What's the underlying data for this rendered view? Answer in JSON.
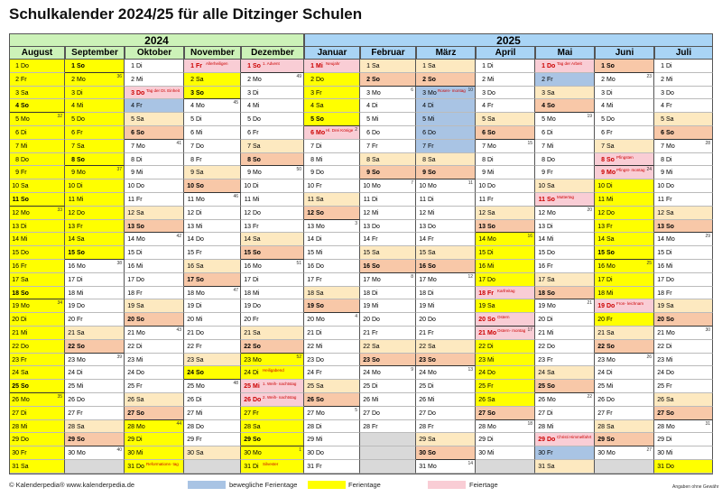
{
  "title": "Schulkalender 2024/25 für alle Ditzinger Schulen",
  "years": [
    "2024",
    "2025"
  ],
  "months": [
    {
      "name": "August",
      "year": 2024,
      "m": 8,
      "holidays": {
        "1": "yellow",
        "2": "yellow",
        "3": "yellow",
        "4": "yellow",
        "5": "yellow",
        "6": "yellow",
        "7": "yellow",
        "8": "yellow",
        "9": "yellow",
        "10": "yellow",
        "11": "yellow",
        "12": "yellow",
        "13": "yellow",
        "14": "yellow",
        "15": "yellow",
        "16": "yellow",
        "17": "yellow",
        "18": "yellow",
        "19": "yellow",
        "20": "yellow",
        "21": "yellow",
        "22": "yellow",
        "23": "yellow",
        "24": "yellow",
        "25": "yellow",
        "26": "yellow",
        "27": "yellow",
        "28": "yellow",
        "29": "yellow",
        "30": "yellow",
        "31": "yellow"
      },
      "notes": {}
    },
    {
      "name": "September",
      "year": 2024,
      "m": 9,
      "holidays": {
        "1": "yellow",
        "2": "yellow",
        "3": "yellow",
        "4": "yellow",
        "5": "yellow",
        "6": "yellow",
        "7": "yellow",
        "8": "yellow",
        "9": "yellow",
        "10": "yellow",
        "11": "yellow",
        "12": "yellow",
        "13": "yellow",
        "14": "yellow",
        "15": "yellow"
      },
      "notes": {}
    },
    {
      "name": "Oktober",
      "year": 2024,
      "m": 10,
      "holidays": {
        "3": "pink",
        "4": "blue",
        "28": "yellow",
        "29": "yellow",
        "30": "yellow",
        "31": "yellow"
      },
      "notes": {
        "3": "Tag der Dt. Einheit",
        "31": "Reformations- tag"
      }
    },
    {
      "name": "November",
      "year": 2024,
      "m": 11,
      "holidays": {
        "1": "pink",
        "2": "yellow",
        "3": "yellow",
        "24": "yellow"
      },
      "notes": {
        "1": "Allerheiligen"
      }
    },
    {
      "name": "Dezember",
      "year": 2024,
      "m": 12,
      "holidays": {
        "1": "pink",
        "23": "yellow",
        "24": "yellow",
        "25": "pink",
        "26": "pink",
        "27": "yellow",
        "28": "yellow",
        "29": "yellow",
        "30": "yellow",
        "31": "yellow"
      },
      "notes": {
        "1": "1. Advent",
        "24": "Heiligabend",
        "25": "1. Weih- nachtstag",
        "26": "2. Weih- nachtstag",
        "31": "Silvester"
      }
    },
    {
      "name": "Januar",
      "year": 2025,
      "m": 1,
      "holidays": {
        "1": "pink",
        "2": "yellow",
        "3": "yellow",
        "4": "yellow",
        "5": "yellow",
        "6": "pink"
      },
      "notes": {
        "1": "Neujahr",
        "6": "Hl. Drei Könige"
      }
    },
    {
      "name": "Februar",
      "year": 2025,
      "m": 2,
      "holidays": {},
      "notes": {}
    },
    {
      "name": "März",
      "year": 2025,
      "m": 3,
      "holidays": {
        "3": "blue",
        "4": "blue",
        "5": "blue",
        "6": "blue",
        "7": "blue"
      },
      "notes": {
        "3": "Rosen- montag"
      }
    },
    {
      "name": "April",
      "year": 2025,
      "m": 4,
      "holidays": {
        "14": "yellow",
        "15": "yellow",
        "16": "yellow",
        "17": "yellow",
        "18": "pink",
        "19": "yellow",
        "20": "pink",
        "21": "pink",
        "22": "yellow",
        "23": "yellow",
        "24": "yellow",
        "25": "yellow",
        "26": "yellow"
      },
      "notes": {
        "18": "Karfreitag",
        "20": "Ostern",
        "21": "Ostern- montag"
      }
    },
    {
      "name": "Mai",
      "year": 2025,
      "m": 5,
      "holidays": {
        "1": "pink",
        "2": "blue",
        "11": "pink",
        "29": "pink",
        "30": "blue"
      },
      "notes": {
        "1": "Tag der Arbeit",
        "11": "Muttertag",
        "29": "Christi Himmelfahrt"
      }
    },
    {
      "name": "Juni",
      "year": 2025,
      "m": 6,
      "holidays": {
        "8": "pink",
        "9": "pink",
        "10": "yellow",
        "11": "yellow",
        "12": "yellow",
        "13": "yellow",
        "14": "yellow",
        "15": "yellow",
        "16": "yellow",
        "17": "yellow",
        "18": "yellow",
        "19": "pink",
        "20": "yellow"
      },
      "notes": {
        "8": "Pfingsten",
        "9": "Pfingst- montag",
        "19": "Fron- leichnam"
      }
    },
    {
      "name": "Juli",
      "year": 2025,
      "m": 7,
      "holidays": {
        "31": "yellow"
      },
      "notes": {}
    }
  ],
  "weekdays": [
    "So",
    "Mo",
    "Di",
    "Mi",
    "Do",
    "Fr",
    "Sa"
  ],
  "colors": {
    "yellow": "#ffff00",
    "blue": "#a9c4e4",
    "pink": "#f9cdd5",
    "saturday": "#fde9c0",
    "sunday": "#f8c8a8",
    "gray": "#d9d9d9",
    "header2024": "#ccf2b8",
    "header2025": "#a9d4f5"
  },
  "footer": {
    "copyright": "© Kalenderpedia®  www.kalenderpedia.de",
    "legend": [
      {
        "label": "bewegliche Ferientage",
        "color": "#a9c4e4"
      },
      {
        "label": "Ferientage",
        "color": "#ffff00"
      },
      {
        "label": "Feiertage",
        "color": "#f9cdd5"
      }
    ],
    "note": "Angaben ohne Gewähr"
  }
}
